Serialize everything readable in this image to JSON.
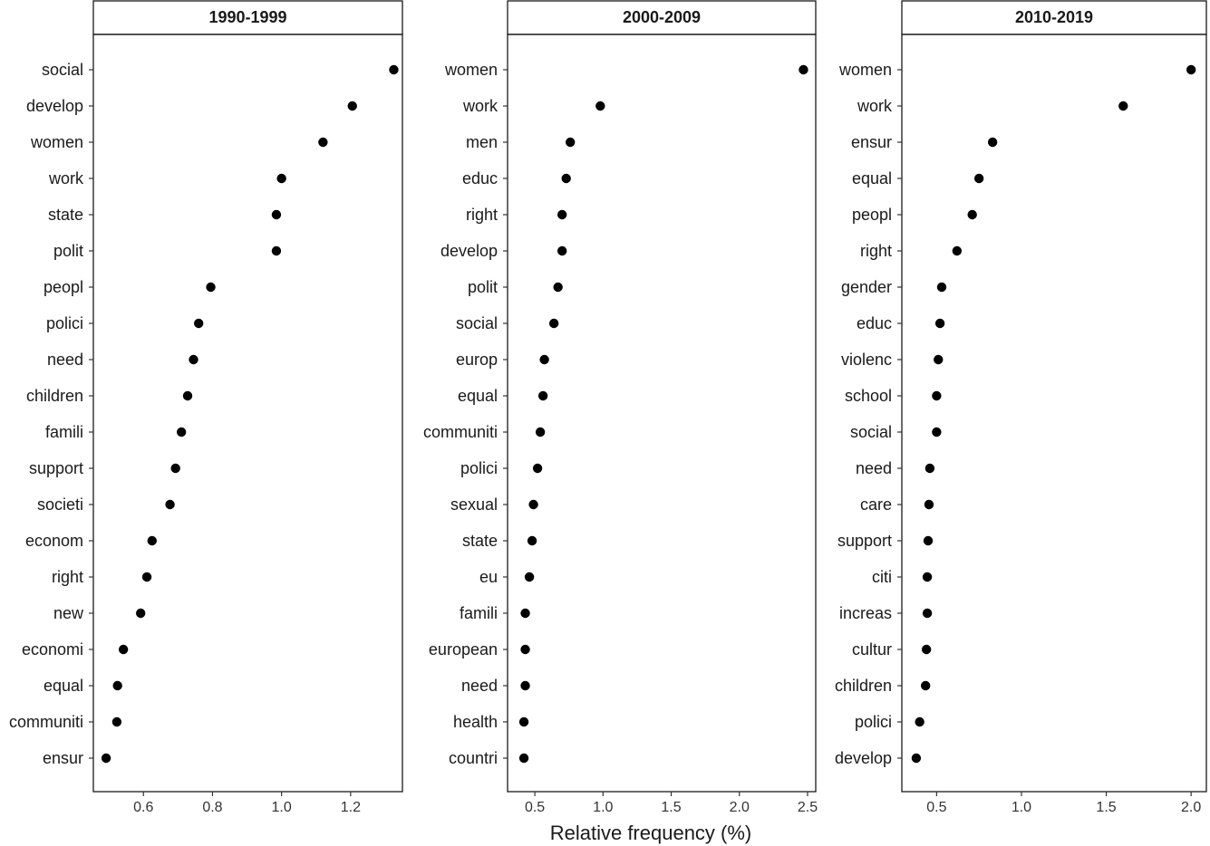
{
  "chart_data": {
    "type": "scatter",
    "xlabel": "Relative frequency (%)",
    "panels": [
      {
        "title": "1990-1999",
        "xlim": [
          0.455,
          1.35
        ],
        "xticks": [
          "0.6",
          "0.8",
          "1.0",
          "1.2"
        ],
        "xtick_values": [
          0.6,
          0.8,
          1.0,
          1.2
        ],
        "categories": [
          "social",
          "develop",
          "women",
          "work",
          "state",
          "polit",
          "peopl",
          "polici",
          "need",
          "children",
          "famili",
          "support",
          "societi",
          "econom",
          "right",
          "new",
          "economi",
          "equal",
          "communiti",
          "ensur"
        ],
        "values": [
          1.325,
          1.205,
          1.12,
          1.0,
          0.985,
          0.985,
          0.795,
          0.76,
          0.745,
          0.728,
          0.71,
          0.693,
          0.677,
          0.625,
          0.61,
          0.592,
          0.542,
          0.525,
          0.523,
          0.492
        ]
      },
      {
        "title": "2000-2009",
        "xlim": [
          0.3,
          2.56
        ],
        "xticks": [
          "0.5",
          "1.0",
          "1.5",
          "2.0",
          "2.5"
        ],
        "xtick_values": [
          0.5,
          1.0,
          1.5,
          2.0,
          2.5
        ],
        "categories": [
          "women",
          "work",
          "men",
          "educ",
          "right",
          "develop",
          "polit",
          "social",
          "europ",
          "equal",
          "communiti",
          "polici",
          "sexual",
          "state",
          "eu",
          "famili",
          "european",
          "need",
          "health",
          "countri"
        ],
        "values": [
          2.47,
          0.98,
          0.76,
          0.73,
          0.7,
          0.7,
          0.67,
          0.64,
          0.57,
          0.56,
          0.54,
          0.52,
          0.49,
          0.48,
          0.46,
          0.43,
          0.43,
          0.43,
          0.42,
          0.42
        ]
      },
      {
        "title": "2010-2019",
        "xlim": [
          0.295,
          2.09
        ],
        "xticks": [
          "0.5",
          "1.0",
          "1.5",
          "2.0"
        ],
        "xtick_values": [
          0.5,
          1.0,
          1.5,
          2.0
        ],
        "categories": [
          "women",
          "work",
          "ensur",
          "equal",
          "peopl",
          "right",
          "gender",
          "educ",
          "violenc",
          "school",
          "social",
          "need",
          "care",
          "support",
          "citi",
          "increas",
          "cultur",
          "children",
          "polici",
          "develop"
        ],
        "values": [
          2.0,
          1.6,
          0.83,
          0.75,
          0.71,
          0.62,
          0.53,
          0.52,
          0.51,
          0.5,
          0.5,
          0.46,
          0.455,
          0.45,
          0.445,
          0.445,
          0.44,
          0.435,
          0.4,
          0.38
        ]
      }
    ]
  }
}
